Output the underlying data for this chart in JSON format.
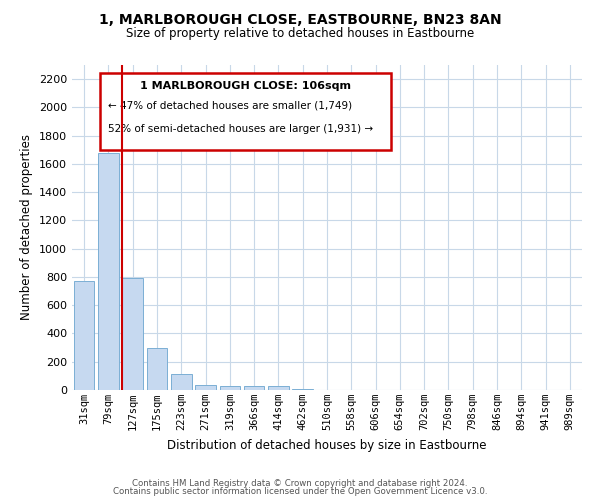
{
  "title1": "1, MARLBOROUGH CLOSE, EASTBOURNE, BN23 8AN",
  "title2": "Size of property relative to detached houses in Eastbourne",
  "xlabel": "Distribution of detached houses by size in Eastbourne",
  "ylabel": "Number of detached properties",
  "categories": [
    "31sqm",
    "79sqm",
    "127sqm",
    "175sqm",
    "223sqm",
    "271sqm",
    "319sqm",
    "366sqm",
    "414sqm",
    "462sqm",
    "510sqm",
    "558sqm",
    "606sqm",
    "654sqm",
    "702sqm",
    "750sqm",
    "798sqm",
    "846sqm",
    "894sqm",
    "941sqm",
    "989sqm"
  ],
  "bar_heights": [
    770,
    1680,
    790,
    295,
    110,
    38,
    28,
    28,
    28,
    5,
    0,
    0,
    0,
    0,
    0,
    0,
    0,
    0,
    0,
    0,
    0
  ],
  "bar_color": "#c6d9f0",
  "bar_edge_color": "#7bafd4",
  "grid_color": "#c8d8e8",
  "annotation_box_color": "#ffffff",
  "annotation_box_edge": "#cc0000",
  "vline_color": "#cc0000",
  "annotation_title": "1 MARLBOROUGH CLOSE: 106sqm",
  "annotation_line1": "← 47% of detached houses are smaller (1,749)",
  "annotation_line2": "52% of semi-detached houses are larger (1,931) →",
  "footer1": "Contains HM Land Registry data © Crown copyright and database right 2024.",
  "footer2": "Contains public sector information licensed under the Open Government Licence v3.0.",
  "ylim": [
    0,
    2300
  ],
  "yticks": [
    0,
    200,
    400,
    600,
    800,
    1000,
    1200,
    1400,
    1600,
    1800,
    2000,
    2200
  ]
}
